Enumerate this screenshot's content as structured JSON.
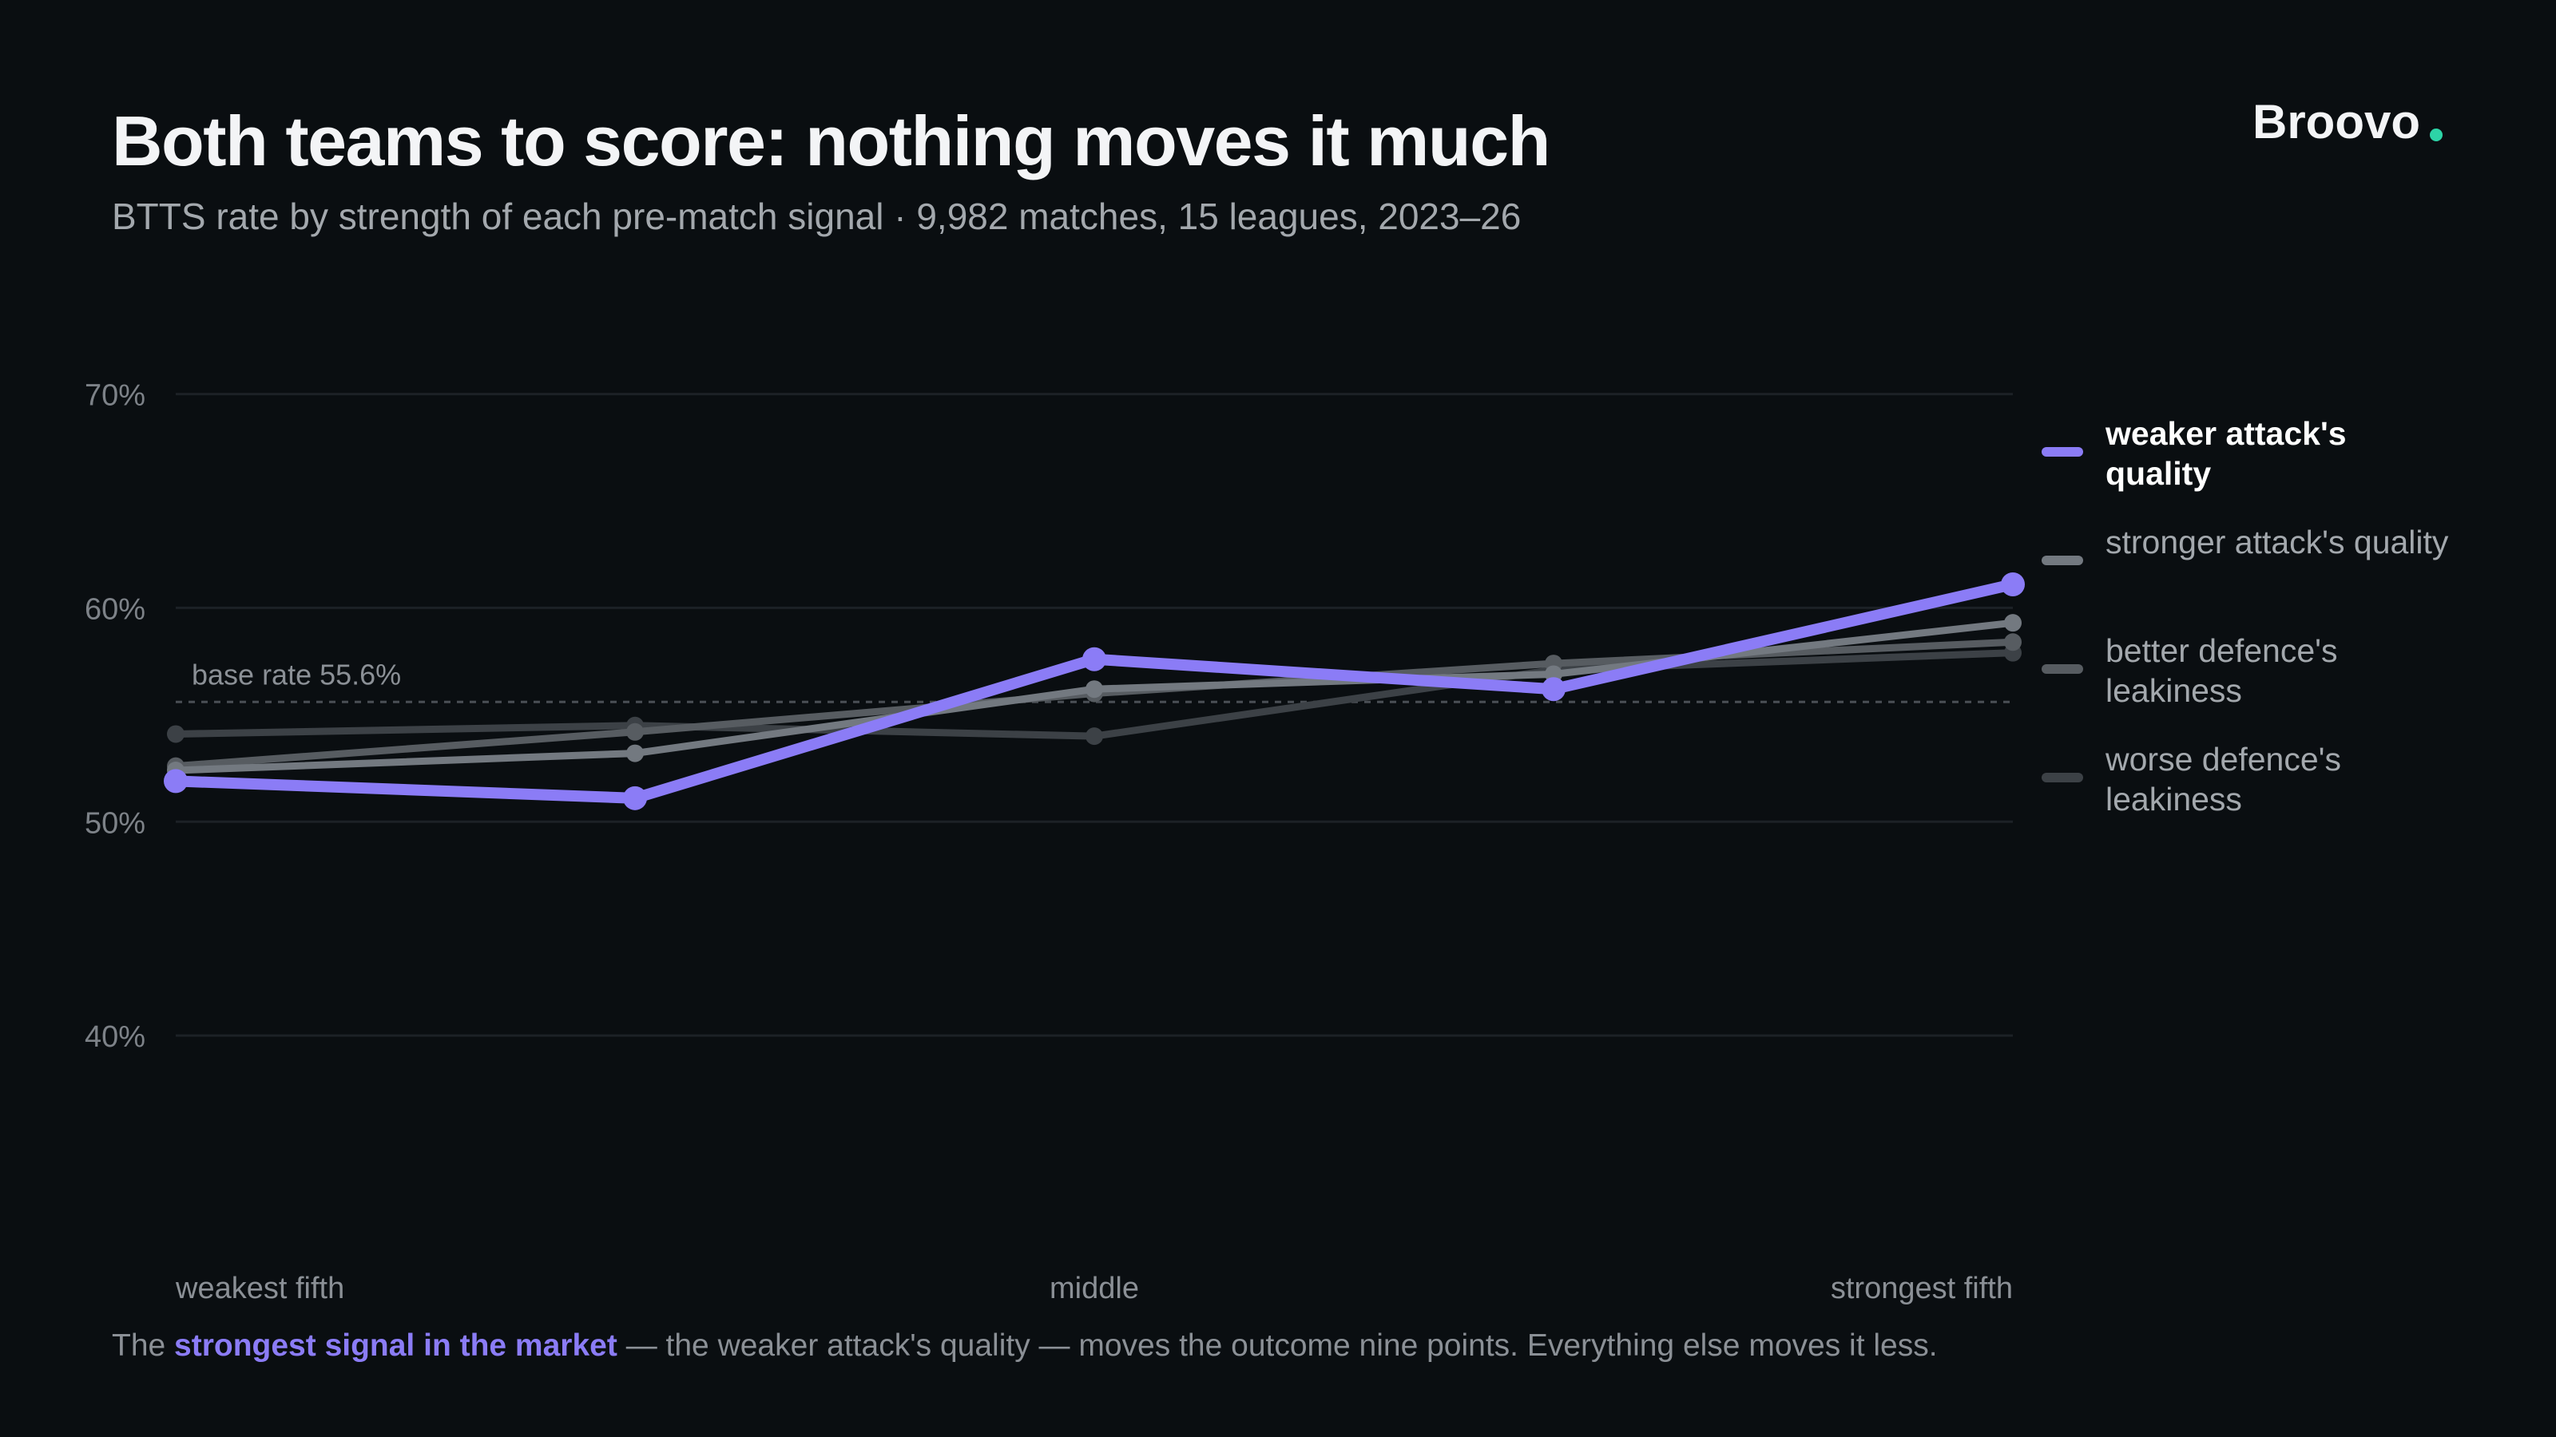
{
  "header": {
    "title": "Both teams to score: nothing moves it much",
    "subtitle": "BTTS rate by strength of each pre-match signal · 9,982 matches, 15 leagues, 2023–26",
    "brand": "Broovo"
  },
  "footnote": {
    "prefix": "The ",
    "highlight": "strongest signal in the market",
    "suffix": " — the weaker attack's quality — moves the outcome nine points. Everything else moves it less."
  },
  "colors": {
    "background": "#0a0e11",
    "accent": "#8b7cf6",
    "brand_dot": "#2dd4a7",
    "grid": "#1c2126",
    "baseline": "#4a4f55"
  },
  "chart_data": {
    "type": "line",
    "x": [
      1,
      2,
      3,
      4,
      5
    ],
    "xtick_labels": {
      "1": "weakest fifth",
      "3": "middle",
      "5": "strongest fifth"
    },
    "ylim": [
      30,
      72
    ],
    "yticks": [
      40,
      50,
      60,
      70
    ],
    "ytick_labels": [
      "40%",
      "50%",
      "60%",
      "70%"
    ],
    "grid": true,
    "legend_position": "right",
    "reference_line": {
      "value": 55.6,
      "label": "base rate 55.6%"
    },
    "series": [
      {
        "name": "worse defence's leakiness",
        "values": [
          54.1,
          54.5,
          54.0,
          57.1,
          57.9
        ],
        "color": "#3c4146",
        "highlight": false
      },
      {
        "name": "better defence's leakiness",
        "values": [
          52.6,
          54.2,
          56.0,
          57.4,
          58.4
        ],
        "color": "#575c61",
        "highlight": false
      },
      {
        "name": "stronger attack's quality",
        "values": [
          52.4,
          53.2,
          56.2,
          56.9,
          59.3
        ],
        "color": "#737980",
        "highlight": false
      },
      {
        "name": "weaker attack's quality",
        "values": [
          51.9,
          51.1,
          57.6,
          56.2,
          61.1
        ],
        "color": "#8b7cf6",
        "highlight": true
      }
    ]
  }
}
